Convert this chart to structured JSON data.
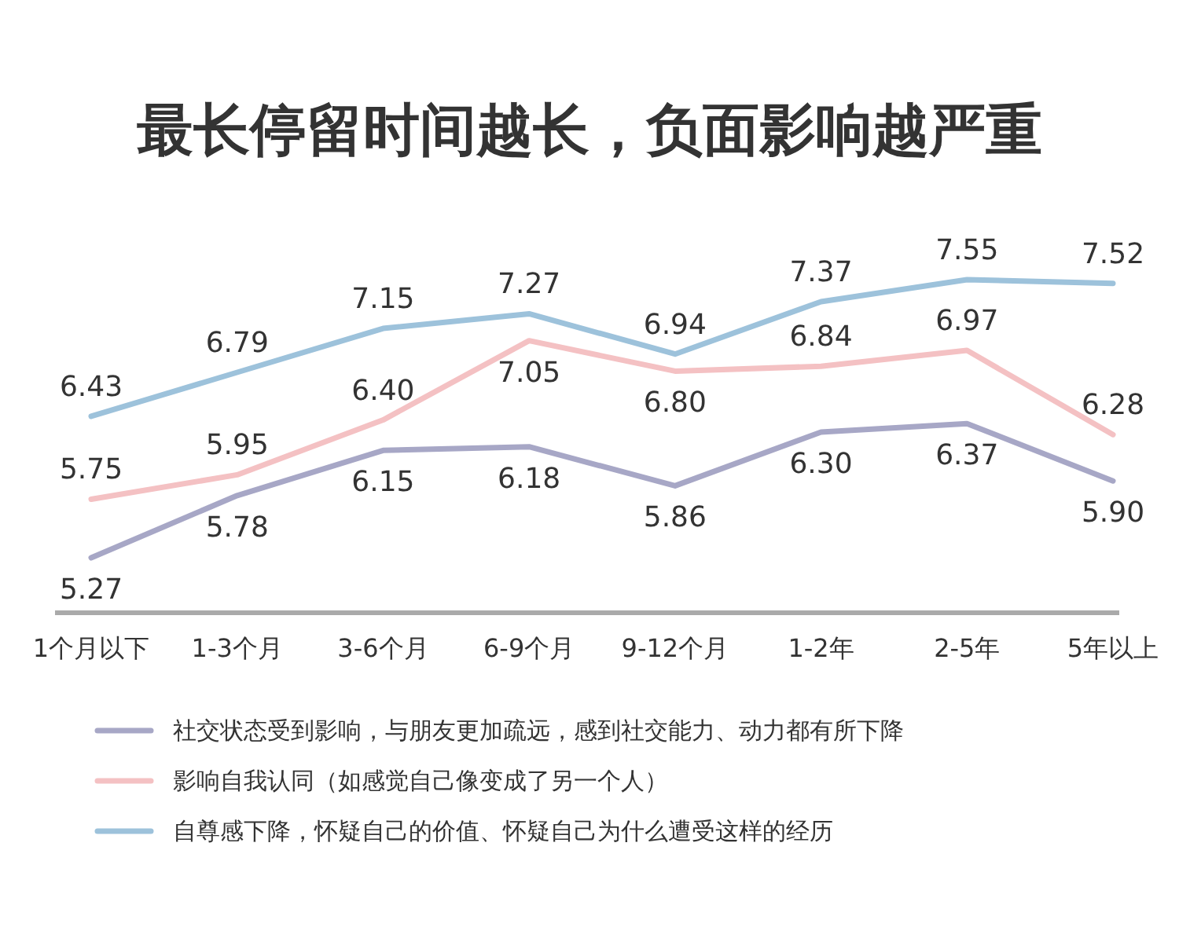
{
  "chart_data": {
    "type": "line",
    "title": "最长停留时间越长，负面影响越严重",
    "categories": [
      "1个月以下",
      "1-3个月",
      "3-6个月",
      "6-9个月",
      "9-12个月",
      "1-2年",
      "2-5年",
      "5年以上"
    ],
    "series": [
      {
        "name": "社交状态受到影响，与朋友更加疏远，感到社交能力、动力都有所下降",
        "color": "#a7a7c6",
        "values": [
          5.27,
          5.78,
          6.15,
          6.18,
          5.86,
          6.3,
          6.37,
          5.9
        ],
        "value_labels": [
          "5.27",
          "5.78",
          "6.15",
          "6.18",
          "5.86",
          "6.30",
          "6.37",
          "5.90"
        ]
      },
      {
        "name": "影响自我认同（如感觉自己像变成了另一个人）",
        "color": "#f4c1c3",
        "values": [
          5.75,
          5.95,
          6.4,
          7.05,
          6.8,
          6.84,
          6.97,
          6.28
        ],
        "value_labels": [
          "5.75",
          "5.95",
          "6.40",
          "7.05",
          "6.80",
          "6.84",
          "6.97",
          "6.28"
        ]
      },
      {
        "name": "自尊感下降，怀疑自己的价值、怀疑自己为什么遭受这样的经历",
        "color": "#9dc2db",
        "values": [
          6.43,
          6.79,
          7.15,
          7.27,
          6.94,
          7.37,
          7.55,
          7.52
        ],
        "value_labels": [
          "6.43",
          "6.79",
          "7.15",
          "7.27",
          "6.94",
          "7.37",
          "7.55",
          "7.52"
        ]
      }
    ],
    "legend": "bottom"
  }
}
